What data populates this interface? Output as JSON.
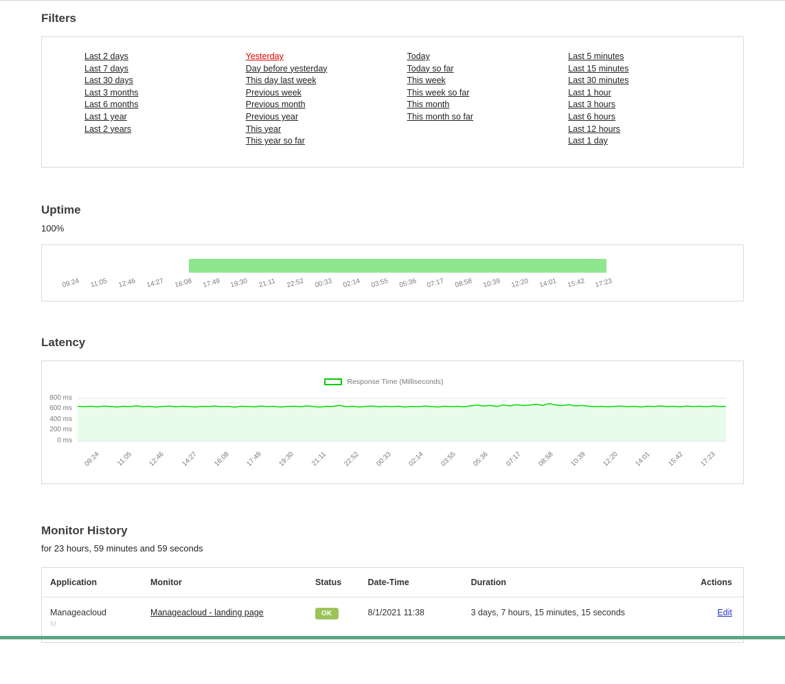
{
  "colors": {
    "uptime_bar_green": "#8ee68e",
    "latency_line_green": "#00d800",
    "latency_fill_green": "#e9fbe9",
    "legend_border_green": "#00cc00",
    "status_badge_green": "#9cc25a",
    "active_filter_red": "#e30000",
    "edit_link_blue": "#2a35c9",
    "footer_bar_teal": "#5aa482"
  },
  "filters": {
    "title": "Filters",
    "columns": [
      {
        "links": [
          {
            "label": "Last 2 days",
            "active": false
          },
          {
            "label": "Last 7 days",
            "active": false
          },
          {
            "label": "Last 30 days",
            "active": false
          },
          {
            "label": "Last 3 months",
            "active": false
          },
          {
            "label": "Last 6 months",
            "active": false
          },
          {
            "label": "Last 1 year",
            "active": false
          },
          {
            "label": "Last 2 years",
            "active": false
          }
        ]
      },
      {
        "links": [
          {
            "label": "Yesterday",
            "active": true
          },
          {
            "label": "Day before yesterday",
            "active": false
          },
          {
            "label": "This day last week",
            "active": false
          },
          {
            "label": "Previous week",
            "active": false
          },
          {
            "label": "Previous month",
            "active": false
          },
          {
            "label": "Previous year",
            "active": false
          },
          {
            "label": "This year",
            "active": false
          },
          {
            "label": "This year so far",
            "active": false
          }
        ]
      },
      {
        "links": [
          {
            "label": "Today",
            "active": false
          },
          {
            "label": "Today so far",
            "active": false
          },
          {
            "label": "This week",
            "active": false
          },
          {
            "label": "This week so far",
            "active": false
          },
          {
            "label": "This month",
            "active": false
          },
          {
            "label": "This month so far",
            "active": false
          }
        ]
      },
      {
        "links": [
          {
            "label": "Last 5 minutes",
            "active": false
          },
          {
            "label": "Last 15 minutes",
            "active": false
          },
          {
            "label": "Last 30 minutes",
            "active": false
          },
          {
            "label": "Last 1 hour",
            "active": false
          },
          {
            "label": "Last 3 hours",
            "active": false
          },
          {
            "label": "Last 6 hours",
            "active": false
          },
          {
            "label": "Last 12 hours",
            "active": false
          },
          {
            "label": "Last 1 day",
            "active": false
          }
        ]
      }
    ]
  },
  "uptime": {
    "title": "Uptime",
    "value": "100%"
  },
  "latency": {
    "title": "Latency",
    "legend": "Response Time (Milliseconds)"
  },
  "history": {
    "title": "Monitor History",
    "subtitle": "for 23 hours, 59 minutes and 59 seconds",
    "columns": [
      "Application",
      "Monitor",
      "Status",
      "Date-Time",
      "Duration",
      "Actions"
    ],
    "rows": [
      {
        "application": "Manageacloud",
        "application_sub": "M",
        "monitor": "Manageacloud - landing page",
        "status": "OK",
        "datetime": "8/1/2021 11:38",
        "duration": "3 days, 7 hours, 15 minutes, 15 seconds",
        "action": "Edit"
      }
    ]
  },
  "chart_data": [
    {
      "type": "area",
      "title": "Uptime",
      "value_pct": 100,
      "x_ticks": [
        "09:24",
        "11:05",
        "12:46",
        "14:27",
        "16:08",
        "17:49",
        "19:30",
        "21:11",
        "22:52",
        "00:33",
        "02:14",
        "03:55",
        "05:36",
        "07:17",
        "08:58",
        "10:39",
        "12:20",
        "14:01",
        "15:42",
        "17:23"
      ],
      "bar": {
        "start_frac": 0.21,
        "end_frac": 0.805,
        "color": "#8ee68e"
      }
    },
    {
      "type": "line",
      "title": "Latency",
      "legend": "Response Time (Milliseconds)",
      "ylabel_ticks": [
        "800 ms",
        "600 ms",
        "400 ms",
        "200 ms",
        "0 ms"
      ],
      "ylim": [
        0,
        800
      ],
      "x_ticks": [
        "09:24",
        "11:05",
        "12:46",
        "14:27",
        "16:08",
        "17:49",
        "19:30",
        "21:11",
        "22:52",
        "00:33",
        "02:14",
        "03:55",
        "05:36",
        "07:17",
        "08:58",
        "10:39",
        "12:20",
        "14:01",
        "15:42",
        "17:23"
      ],
      "values": [
        650,
        644,
        652,
        640,
        655,
        646,
        638,
        650,
        645,
        658,
        642,
        650,
        636,
        648,
        654,
        640,
        652,
        645,
        637,
        650,
        646,
        656,
        641,
        648,
        634,
        652,
        647,
        640,
        655,
        644,
        650,
        638,
        646,
        652,
        642,
        658,
        645,
        636,
        650,
        648,
        668,
        642,
        652,
        638,
        648,
        655,
        640,
        650,
        644,
        652,
        637,
        648,
        642,
        656,
        646,
        638,
        652,
        645,
        650,
        640,
        660,
        672,
        655,
        668,
        648,
        675,
        660,
        680,
        665,
        672,
        690,
        668,
        700,
        676,
        664,
        680,
        658,
        668,
        652,
        645,
        650,
        640,
        648,
        655,
        642,
        650,
        638,
        652,
        646,
        658,
        644,
        650,
        640,
        654,
        647,
        652,
        642,
        656,
        648,
        650
      ]
    }
  ]
}
